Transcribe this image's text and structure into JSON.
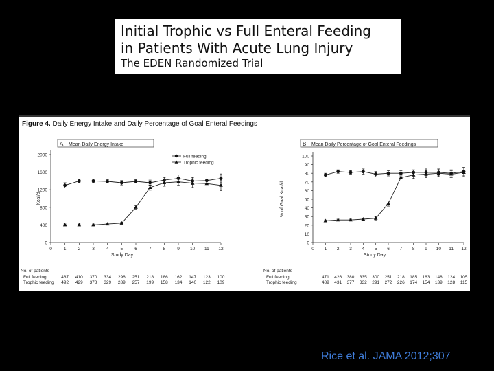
{
  "slide": {
    "title_lines": [
      "Initial Trophic vs Full Enteral Feeding",
      "in Patients With Acute Lung Injury",
      "The EDEN Randomized Trial"
    ],
    "citation": "Rice et al. JAMA 2012;307",
    "colors": {
      "background": "#000000",
      "citation": "#3f7cd8"
    }
  },
  "figure": {
    "label": "Figure 4.",
    "caption": "Daily Energy Intake and Daily Percentage of Goal Enteral Feedings"
  },
  "chart_data": [
    {
      "type": "line",
      "panel": "A",
      "title": "Mean Daily Energy Intake",
      "xlabel": "Study Day",
      "ylabel": "Kcal/d",
      "x": [
        1,
        2,
        3,
        4,
        5,
        6,
        7,
        8,
        9,
        10,
        11,
        12
      ],
      "xlim": [
        0,
        12
      ],
      "xticks": [
        "0",
        "1",
        "2",
        "3",
        "4",
        "5",
        "6",
        "7",
        "8",
        "9",
        "10",
        "11",
        "12"
      ],
      "ylim": [
        0,
        2000
      ],
      "yticks": [
        "0",
        "400",
        "800",
        "1200",
        "1600",
        "2000"
      ],
      "legend": "top-right",
      "series": [
        {
          "name": "Full feeding",
          "marker": "circle",
          "values": [
            1300,
            1400,
            1400,
            1390,
            1360,
            1390,
            1360,
            1420,
            1460,
            1400,
            1410,
            1460
          ],
          "err": [
            60,
            40,
            40,
            40,
            50,
            40,
            60,
            60,
            80,
            80,
            80,
            100
          ]
        },
        {
          "name": "Trophic feeding",
          "marker": "triangle",
          "values": [
            400,
            400,
            400,
            420,
            440,
            800,
            1250,
            1360,
            1380,
            1350,
            1340,
            1300
          ],
          "err": [
            20,
            20,
            20,
            20,
            20,
            40,
            60,
            80,
            80,
            100,
            100,
            120
          ]
        }
      ],
      "patients": {
        "header": "No. of patients",
        "rows": [
          {
            "label": "Full feeding",
            "values": [
              "487",
              "410",
              "370",
              "334",
              "296",
              "251",
              "218",
              "186",
              "162",
              "147",
              "123",
              "100"
            ]
          },
          {
            "label": "Trophic feeding",
            "values": [
              "492",
              "429",
              "378",
              "329",
              "289",
              "257",
              "199",
              "158",
              "134",
              "140",
              "122",
              "109"
            ]
          }
        ]
      }
    },
    {
      "type": "line",
      "panel": "B",
      "title": "Mean Daily Percentage of Goal Enteral Feedings",
      "xlabel": "Study Day",
      "ylabel": "% of Goal Kcal/d",
      "x": [
        1,
        2,
        3,
        4,
        5,
        6,
        7,
        8,
        9,
        10,
        11,
        12
      ],
      "xlim": [
        0,
        12
      ],
      "xticks": [
        "0",
        "1",
        "2",
        "3",
        "4",
        "5",
        "6",
        "7",
        "8",
        "9",
        "10",
        "11",
        "12"
      ],
      "ylim": [
        0,
        100
      ],
      "yticks": [
        "0",
        "10",
        "20",
        "30",
        "40",
        "50",
        "60",
        "70",
        "80",
        "90",
        "100"
      ],
      "series": [
        {
          "name": "Full feeding",
          "marker": "circle",
          "values": [
            78,
            82,
            81,
            82,
            79,
            80,
            80,
            81,
            81,
            81,
            80,
            82
          ],
          "err": [
            2,
            2,
            2,
            3,
            3,
            3,
            3,
            3,
            4,
            4,
            4,
            5
          ]
        },
        {
          "name": "Trophic feeding",
          "marker": "triangle",
          "values": [
            25,
            26,
            26,
            27,
            28,
            45,
            75,
            78,
            79,
            80,
            79,
            81
          ],
          "err": [
            1,
            1,
            1,
            1,
            2,
            3,
            4,
            4,
            4,
            4,
            4,
            5
          ]
        }
      ],
      "patients": {
        "header": "No. of patients",
        "rows": [
          {
            "label": "Full feeding",
            "values": [
              "471",
              "426",
              "380",
              "335",
              "300",
              "251",
              "218",
              "185",
              "163",
              "148",
              "124",
              "105"
            ]
          },
          {
            "label": "Trophic feeding",
            "values": [
              "489",
              "431",
              "377",
              "332",
              "291",
              "272",
              "226",
              "174",
              "154",
              "139",
              "128",
              "115"
            ]
          }
        ]
      }
    }
  ]
}
